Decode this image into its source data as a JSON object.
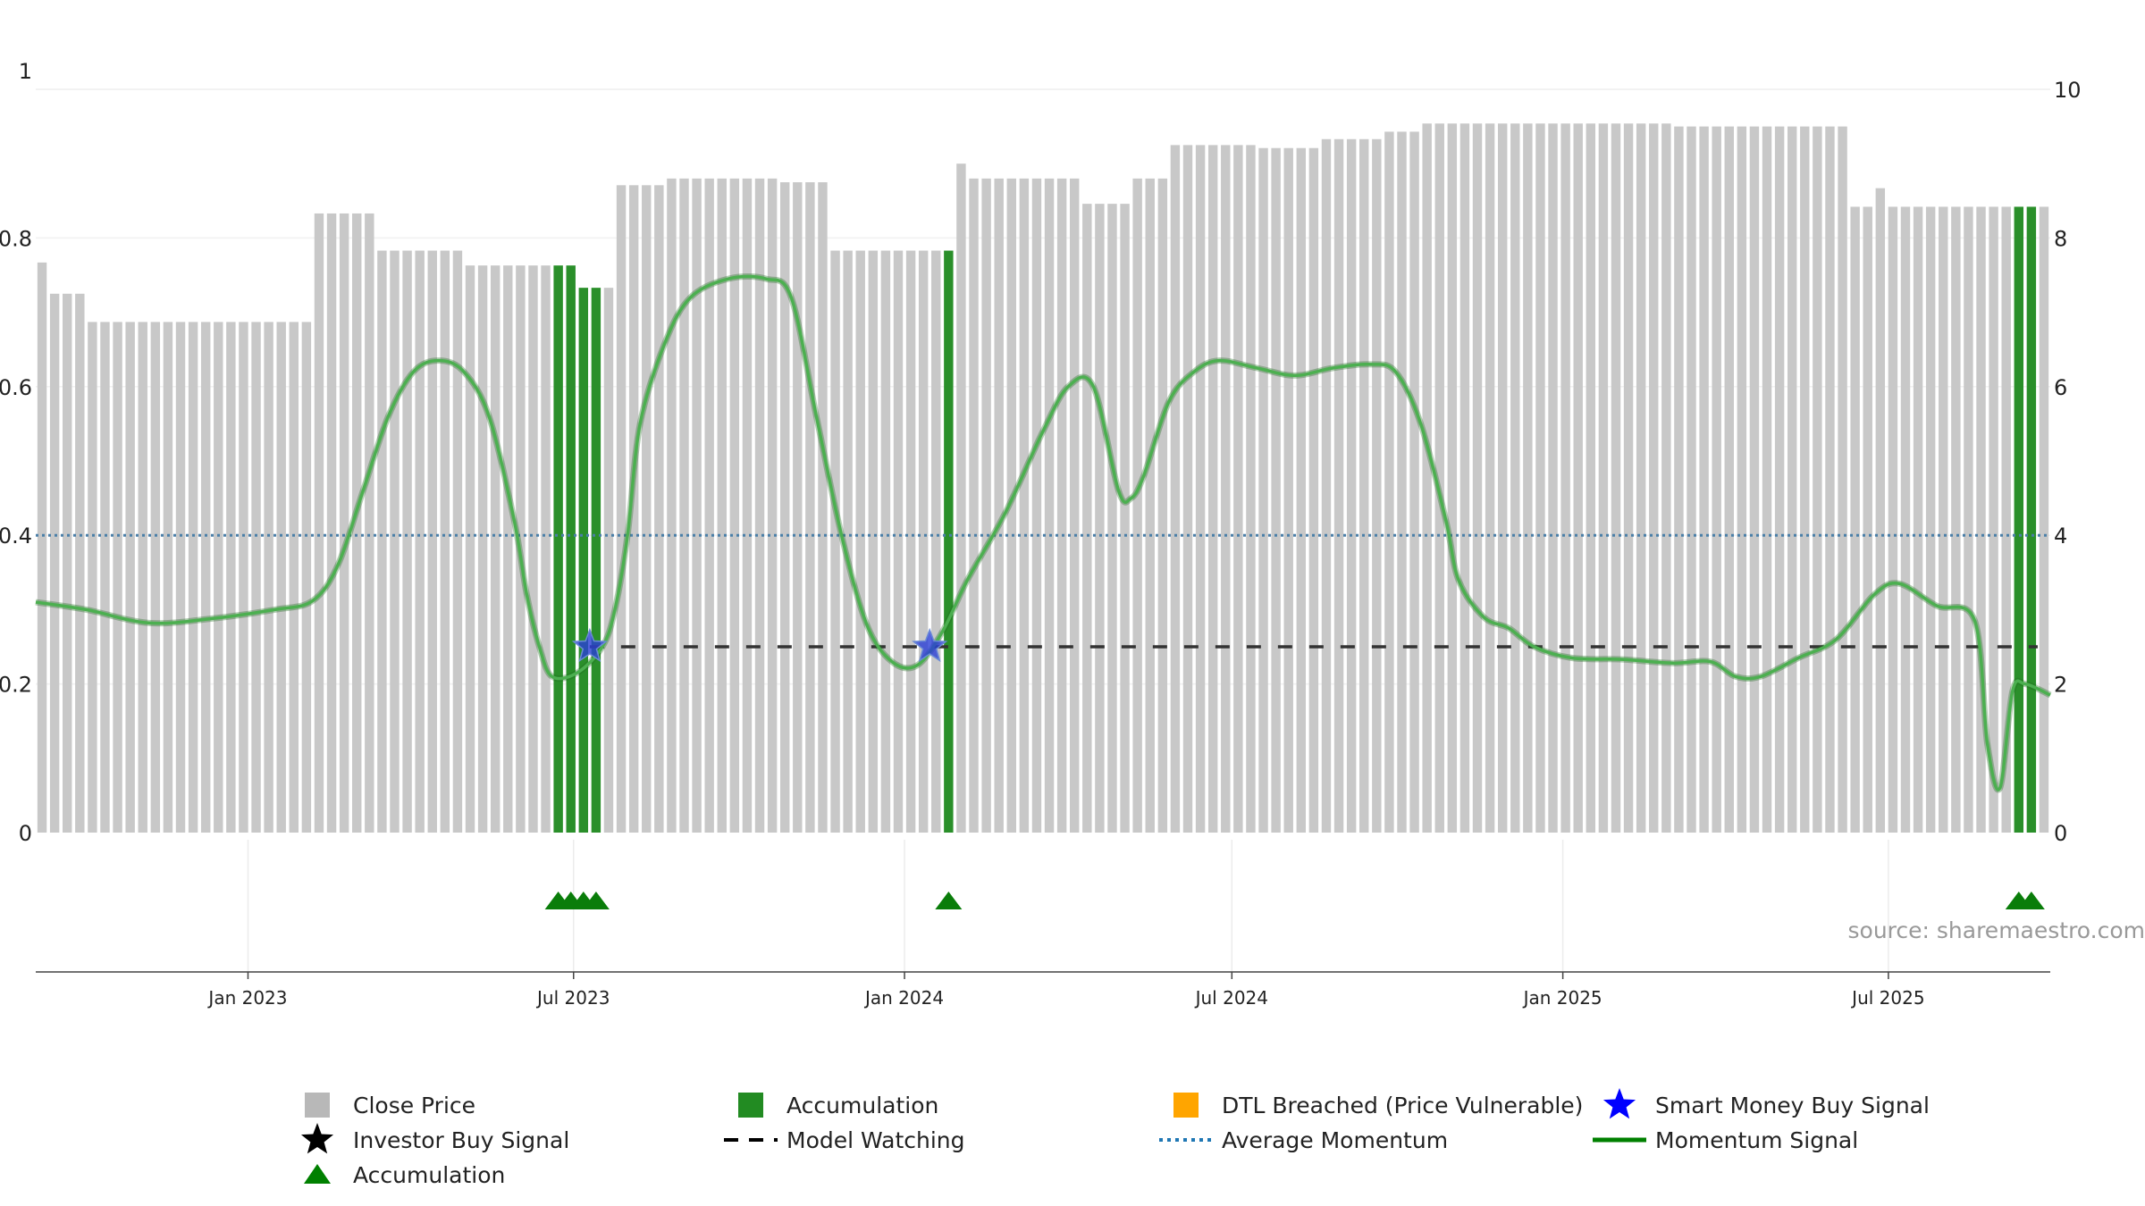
{
  "chart_data": {
    "type": "bar",
    "source": "source: sharemaestro.com",
    "left_axis": {
      "ticks": [
        0,
        0.2,
        0.4,
        0.6,
        0.8,
        1
      ],
      "labels": [
        "0",
        "0.2",
        "0.4",
        "0.6",
        "0.8",
        "1"
      ],
      "ylim": [
        0,
        1
      ]
    },
    "right_axis": {
      "ticks": [
        0,
        2,
        4,
        6,
        8,
        10
      ],
      "labels": [
        "0",
        "2",
        "4",
        "6",
        "8",
        "10"
      ],
      "ylim": [
        0,
        10
      ]
    },
    "x_range": [
      "2022-09-05",
      "2025-09-29"
    ],
    "x_ticks": [
      {
        "date": "2023-01-01",
        "label": "Jan 2023"
      },
      {
        "date": "2023-07-01",
        "label": "Jul 2023"
      },
      {
        "date": "2024-01-01",
        "label": "Jan 2024"
      },
      {
        "date": "2024-07-01",
        "label": "Jul 2024"
      },
      {
        "date": "2025-01-01",
        "label": "Jan 2025"
      },
      {
        "date": "2025-07-01",
        "label": "Jul 2025"
      }
    ],
    "close_price_segments": [
      {
        "start": "2022-09-05",
        "weeks": 1,
        "value": 7.67
      },
      {
        "start": "2022-09-12",
        "weeks": 3,
        "value": 7.25
      },
      {
        "start": "2022-10-03",
        "weeks": 18,
        "value": 6.87
      },
      {
        "start": "2023-02-06",
        "weeks": 5,
        "value": 8.33
      },
      {
        "start": "2023-03-13",
        "weeks": 7,
        "value": 7.83
      },
      {
        "start": "2023-05-01",
        "weeks": 7,
        "value": 7.63
      },
      {
        "start": "2023-06-19",
        "weeks": 2,
        "value": 7.63,
        "accumulation": true
      },
      {
        "start": "2023-07-03",
        "weeks": 2,
        "value": 7.33,
        "accumulation": true
      },
      {
        "start": "2023-07-17",
        "weeks": 1,
        "value": 7.33
      },
      {
        "start": "2023-07-24",
        "weeks": 4,
        "value": 8.71
      },
      {
        "start": "2023-08-21",
        "weeks": 9,
        "value": 8.8
      },
      {
        "start": "2023-10-23",
        "weeks": 4,
        "value": 8.75
      },
      {
        "start": "2023-11-20",
        "weeks": 9,
        "value": 7.83
      },
      {
        "start": "2024-01-22",
        "weeks": 1,
        "value": 7.83,
        "accumulation": true
      },
      {
        "start": "2024-01-29",
        "weeks": 1,
        "value": 9.0
      },
      {
        "start": "2024-02-05",
        "weeks": 9,
        "value": 8.8
      },
      {
        "start": "2024-04-08",
        "weeks": 4,
        "value": 8.46
      },
      {
        "start": "2024-05-06",
        "weeks": 3,
        "value": 8.8
      },
      {
        "start": "2024-05-27",
        "weeks": 7,
        "value": 9.25
      },
      {
        "start": "2024-07-15",
        "weeks": 5,
        "value": 9.21
      },
      {
        "start": "2024-08-19",
        "weeks": 5,
        "value": 9.33
      },
      {
        "start": "2024-09-23",
        "weeks": 3,
        "value": 9.43
      },
      {
        "start": "2024-10-14",
        "weeks": 20,
        "value": 9.54
      },
      {
        "start": "2025-03-03",
        "weeks": 14,
        "value": 9.5
      },
      {
        "start": "2025-06-09",
        "weeks": 2,
        "value": 8.42
      },
      {
        "start": "2025-06-23",
        "weeks": 1,
        "value": 8.67
      },
      {
        "start": "2025-06-30",
        "weeks": 10,
        "value": 8.42
      },
      {
        "start": "2025-09-08",
        "weeks": 2,
        "value": 8.42,
        "accumulation": true
      },
      {
        "start": "2025-09-22",
        "weeks": 1,
        "value": 8.42
      }
    ],
    "momentum_signal": [
      [
        "2022-09-05",
        3.1
      ],
      [
        "2022-10-03",
        3.0
      ],
      [
        "2022-11-07",
        2.82
      ],
      [
        "2022-12-12",
        2.88
      ],
      [
        "2023-01-16",
        3.0
      ],
      [
        "2023-02-06",
        3.12
      ],
      [
        "2023-02-20",
        3.6
      ],
      [
        "2023-03-06",
        4.6
      ],
      [
        "2023-03-20",
        5.6
      ],
      [
        "2023-04-03",
        6.2
      ],
      [
        "2023-04-17",
        6.35
      ],
      [
        "2023-05-01",
        6.2
      ],
      [
        "2023-05-15",
        5.6
      ],
      [
        "2023-05-29",
        4.2
      ],
      [
        "2023-06-05",
        3.2
      ],
      [
        "2023-06-12",
        2.5
      ],
      [
        "2023-06-19",
        2.1
      ],
      [
        "2023-07-03",
        2.15
      ],
      [
        "2023-07-17",
        2.5
      ],
      [
        "2023-07-24",
        3.0
      ],
      [
        "2023-07-31",
        4.0
      ],
      [
        "2023-08-07",
        5.5
      ],
      [
        "2023-08-21",
        6.6
      ],
      [
        "2023-09-04",
        7.2
      ],
      [
        "2023-09-25",
        7.45
      ],
      [
        "2023-10-16",
        7.45
      ],
      [
        "2023-10-30",
        7.2
      ],
      [
        "2023-11-13",
        5.6
      ],
      [
        "2023-11-27",
        4.0
      ],
      [
        "2023-12-11",
        2.8
      ],
      [
        "2023-12-25",
        2.3
      ],
      [
        "2024-01-08",
        2.25
      ],
      [
        "2024-01-22",
        2.7
      ],
      [
        "2024-02-05",
        3.4
      ],
      [
        "2024-02-26",
        4.3
      ],
      [
        "2024-03-18",
        5.4
      ],
      [
        "2024-04-01",
        6.0
      ],
      [
        "2024-04-15",
        6.0
      ],
      [
        "2024-04-29",
        4.6
      ],
      [
        "2024-05-06",
        4.5
      ],
      [
        "2024-05-13",
        4.8
      ],
      [
        "2024-05-27",
        5.8
      ],
      [
        "2024-06-10",
        6.2
      ],
      [
        "2024-06-24",
        6.35
      ],
      [
        "2024-07-15",
        6.25
      ],
      [
        "2024-08-05",
        6.15
      ],
      [
        "2024-08-26",
        6.25
      ],
      [
        "2024-09-16",
        6.3
      ],
      [
        "2024-09-30",
        6.2
      ],
      [
        "2024-10-14",
        5.5
      ],
      [
        "2024-10-28",
        4.2
      ],
      [
        "2024-11-04",
        3.4
      ],
      [
        "2024-11-18",
        2.9
      ],
      [
        "2024-12-02",
        2.75
      ],
      [
        "2024-12-16",
        2.5
      ],
      [
        "2025-01-06",
        2.35
      ],
      [
        "2025-02-03",
        2.33
      ],
      [
        "2025-03-03",
        2.28
      ],
      [
        "2025-03-24",
        2.3
      ],
      [
        "2025-04-07",
        2.1
      ],
      [
        "2025-04-21",
        2.1
      ],
      [
        "2025-05-12",
        2.35
      ],
      [
        "2025-06-02",
        2.6
      ],
      [
        "2025-06-23",
        3.2
      ],
      [
        "2025-07-07",
        3.35
      ],
      [
        "2025-07-28",
        3.05
      ],
      [
        "2025-08-18",
        2.85
      ],
      [
        "2025-08-25",
        1.2
      ],
      [
        "2025-09-01",
        0.6
      ],
      [
        "2025-09-08",
        1.9
      ],
      [
        "2025-09-15",
        2.0
      ],
      [
        "2025-09-29",
        1.85
      ]
    ],
    "average_momentum": 4.0,
    "model_watching": {
      "start": "2023-07-10",
      "end": "2025-09-22",
      "value": 2.5
    },
    "smart_money_buy_signals": [
      {
        "date": "2023-07-10",
        "value": 2.5
      },
      {
        "date": "2024-01-15",
        "value": 2.5
      }
    ],
    "accumulation_markers": [
      "2023-06-19",
      "2023-06-26",
      "2023-07-03",
      "2023-07-10",
      "2024-01-22",
      "2025-09-08",
      "2025-09-15"
    ],
    "legend": [
      {
        "key": "close_price",
        "label": "Close Price",
        "marker": "square",
        "color": "#b8b8b8"
      },
      {
        "key": "accumulation_bar",
        "label": "Accumulation",
        "marker": "square",
        "color": "#228b22"
      },
      {
        "key": "dtl",
        "label": "DTL Breached (Price Vulnerable)",
        "marker": "square",
        "color": "#ffa500"
      },
      {
        "key": "smart_money",
        "label": "Smart Money Buy Signal",
        "marker": "star",
        "color": "#0000ff"
      },
      {
        "key": "investor_buy",
        "label": "Investor Buy Signal",
        "marker": "star",
        "color": "#000000"
      },
      {
        "key": "model_watching",
        "label": "Model Watching",
        "marker": "dash",
        "color": "#000000"
      },
      {
        "key": "average_momentum",
        "label": "Average Momentum",
        "marker": "dot",
        "color": "#1f77b4"
      },
      {
        "key": "momentum_signal",
        "label": "Momentum Signal",
        "marker": "line",
        "color": "#008000"
      },
      {
        "key": "accumulation_marker",
        "label": "Accumulation",
        "marker": "triangle",
        "color": "#008000"
      }
    ],
    "colors": {
      "close_price": "#c8c8c8",
      "accumulation": "#2a8f2a",
      "momentum": "#3a8c3a",
      "average_momentum": "#4a7fa8",
      "model_watching": "#333333",
      "smart_money": "#2b3fd6",
      "triangle": "#0a7d0a"
    }
  }
}
